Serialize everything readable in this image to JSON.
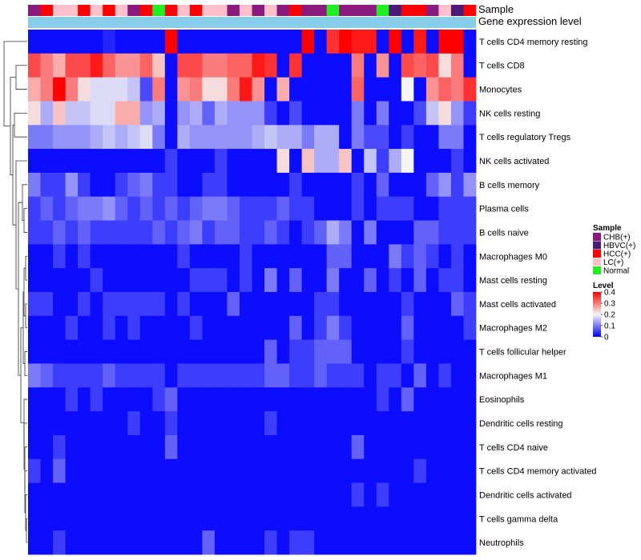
{
  "chart_data": {
    "type": "heatmap",
    "title": "",
    "track_labels": {
      "sample": "Sample",
      "gene_expression": "Gene expression level"
    },
    "sample_legend": {
      "title": "Sample",
      "entries": [
        {
          "key": "CHB",
          "label": "CHB(+)",
          "color": "#8B1A7E"
        },
        {
          "key": "HBVC",
          "label": "HBVC(+)",
          "color": "#4B1A78"
        },
        {
          "key": "HCC",
          "label": "HCC(+)",
          "color": "#FF0000"
        },
        {
          "key": "LC",
          "label": "LC(+)",
          "color": "#FFC0CB"
        },
        {
          "key": "Normal",
          "label": "Normal",
          "color": "#22EE22"
        }
      ]
    },
    "level_legend": {
      "title": "Level",
      "ticks": [
        "0",
        "0.1",
        "0.2",
        "0.3",
        "0.4"
      ],
      "tick_values": [
        0,
        0.1,
        0.2,
        0.3,
        0.4
      ],
      "range": [
        0,
        0.4
      ]
    },
    "color_scale": {
      "low": "#0000FF",
      "mid": "#F5F5F5",
      "high": "#FF0000",
      "domain": [
        0,
        0.2,
        0.4
      ]
    },
    "gene_expression_color": "#87CEEB",
    "sample_groups": [
      "CHB",
      "HCC",
      "LC",
      "LC",
      "HCC",
      "LC",
      "HCC",
      "LC",
      "CHB",
      "HCC",
      "Normal",
      "HCC",
      "LC",
      "HCC",
      "LC",
      "LC",
      "CHB",
      "LC",
      "CHB",
      "LC",
      "CHB",
      "HCC",
      "CHB",
      "CHB",
      "Normal",
      "CHB",
      "CHB",
      "CHB",
      "Normal",
      "HBVC",
      "HCC",
      "HCC",
      "CHB",
      "LC",
      "HBVC",
      "HCC"
    ],
    "rows": [
      "T cells CD4 memory resting",
      "T cells CD8",
      "Monocytes",
      "NK cells resting",
      "T cells regulatory  Tregs",
      "NK cells activated",
      "B cells memory",
      "Plasma cells",
      "B cells naive",
      "Macrophages M0",
      "Mast cells resting",
      "Mast cells activated",
      "Macrophages M2",
      "T cells follicular helper",
      "Macrophages M1",
      "Eosinophils",
      "Dendritic cells resting",
      "T cells CD4 naive",
      "T cells CD4 memory activated",
      "Dendritic cells activated",
      "T cells gamma delta",
      "Neutrophils"
    ],
    "values": [
      [
        0.01,
        0.01,
        0.01,
        0.01,
        0.01,
        0.01,
        0.03,
        0.01,
        0.01,
        0.01,
        0.01,
        0.4,
        0.01,
        0.01,
        0.01,
        0.01,
        0.01,
        0.01,
        0.01,
        0.01,
        0.01,
        0.01,
        0.4,
        0.01,
        0.36,
        0.4,
        0.38,
        0.38,
        0.01,
        0.4,
        0.01,
        0.38,
        0.01,
        0.4,
        0.4,
        0.01
      ],
      [
        0.34,
        0.3,
        0.26,
        0.34,
        0.34,
        0.38,
        0.32,
        0.28,
        0.28,
        0.32,
        0.24,
        0.01,
        0.34,
        0.34,
        0.3,
        0.3,
        0.32,
        0.32,
        0.38,
        0.36,
        0.01,
        0.36,
        0.01,
        0.01,
        0.01,
        0.01,
        0.3,
        0.01,
        0.28,
        0.01,
        0.34,
        0.32,
        0.34,
        0.22,
        0.3,
        0.01
      ],
      [
        0.26,
        0.3,
        0.4,
        0.3,
        0.22,
        0.18,
        0.18,
        0.18,
        0.16,
        0.06,
        0.3,
        0.01,
        0.28,
        0.3,
        0.22,
        0.22,
        0.3,
        0.38,
        0.28,
        0.01,
        0.26,
        0.01,
        0.01,
        0.01,
        0.01,
        0.01,
        0.32,
        0.01,
        0.01,
        0.01,
        0.2,
        0.01,
        0.28,
        0.32,
        0.3,
        0.36
      ],
      [
        0.22,
        0.14,
        0.24,
        0.16,
        0.16,
        0.18,
        0.18,
        0.26,
        0.26,
        0.12,
        0.14,
        0.01,
        0.12,
        0.14,
        0.08,
        0.14,
        0.12,
        0.12,
        0.12,
        0.05,
        0.01,
        0.06,
        0.01,
        0.01,
        0.01,
        0.01,
        0.1,
        0.01,
        0.1,
        0.01,
        0.01,
        0.06,
        0.16,
        0.22,
        0.12,
        0.05
      ],
      [
        0.1,
        0.1,
        0.12,
        0.12,
        0.12,
        0.14,
        0.16,
        0.14,
        0.16,
        0.18,
        0.1,
        0.01,
        0.14,
        0.12,
        0.12,
        0.12,
        0.12,
        0.12,
        0.14,
        0.16,
        0.14,
        0.14,
        0.1,
        0.14,
        0.14,
        0.01,
        0.1,
        0.06,
        0.06,
        0.01,
        0.05,
        0.01,
        0.01,
        0.1,
        0.1,
        0.01
      ],
      [
        0.01,
        0.01,
        0.01,
        0.01,
        0.01,
        0.01,
        0.01,
        0.01,
        0.01,
        0.01,
        0.01,
        0.05,
        0.01,
        0.01,
        0.01,
        0.05,
        0.01,
        0.01,
        0.01,
        0.01,
        0.22,
        0.01,
        0.24,
        0.14,
        0.14,
        0.24,
        0.01,
        0.16,
        0.05,
        0.14,
        0.2,
        0.01,
        0.01,
        0.01,
        0.05,
        0.01
      ],
      [
        0.1,
        0.05,
        0.05,
        0.12,
        0.05,
        0.01,
        0.01,
        0.05,
        0.08,
        0.1,
        0.05,
        0.05,
        0.01,
        0.01,
        0.05,
        0.05,
        0.01,
        0.01,
        0.01,
        0.01,
        0.01,
        0.05,
        0.01,
        0.01,
        0.01,
        0.01,
        0.05,
        0.01,
        0.08,
        0.01,
        0.01,
        0.01,
        0.08,
        0.12,
        0.05,
        0.12
      ],
      [
        0.05,
        0.08,
        0.05,
        0.08,
        0.1,
        0.1,
        0.12,
        0.08,
        0.05,
        0.08,
        0.05,
        0.08,
        0.05,
        0.08,
        0.1,
        0.1,
        0.08,
        0.05,
        0.05,
        0.05,
        0.08,
        0.05,
        0.05,
        0.01,
        0.01,
        0.01,
        0.05,
        0.01,
        0.05,
        0.05,
        0.05,
        0.01,
        0.01,
        0.05,
        0.05,
        0.05
      ],
      [
        0.05,
        0.05,
        0.08,
        0.05,
        0.08,
        0.05,
        0.05,
        0.05,
        0.05,
        0.05,
        0.08,
        0.05,
        0.08,
        0.1,
        0.05,
        0.08,
        0.08,
        0.05,
        0.05,
        0.08,
        0.05,
        0.01,
        0.05,
        0.08,
        0.14,
        0.1,
        0.01,
        0.1,
        0.01,
        0.01,
        0.01,
        0.08,
        0.08,
        0.05,
        0.05,
        0.05
      ],
      [
        0.01,
        0.01,
        0.05,
        0.01,
        0.05,
        0.01,
        0.01,
        0.01,
        0.01,
        0.01,
        0.01,
        0.01,
        0.05,
        0.01,
        0.01,
        0.01,
        0.01,
        0.05,
        0.01,
        0.01,
        0.01,
        0.01,
        0.01,
        0.01,
        0.08,
        0.08,
        0.01,
        0.01,
        0.01,
        0.1,
        0.05,
        0.08,
        0.05,
        0.01,
        0.05,
        0.01
      ],
      [
        0.01,
        0.01,
        0.01,
        0.01,
        0.01,
        0.05,
        0.01,
        0.01,
        0.01,
        0.01,
        0.01,
        0.01,
        0.01,
        0.05,
        0.05,
        0.05,
        0.01,
        0.05,
        0.01,
        0.1,
        0.01,
        0.08,
        0.01,
        0.01,
        0.1,
        0.01,
        0.01,
        0.08,
        0.01,
        0.05,
        0.01,
        0.08,
        0.01,
        0.05,
        0.05,
        0.01
      ],
      [
        0.05,
        0.05,
        0.01,
        0.01,
        0.05,
        0.01,
        0.05,
        0.05,
        0.05,
        0.05,
        0.05,
        0.01,
        0.05,
        0.01,
        0.01,
        0.01,
        0.08,
        0.01,
        0.01,
        0.01,
        0.01,
        0.01,
        0.01,
        0.05,
        0.05,
        0.01,
        0.01,
        0.01,
        0.01,
        0.01,
        0.05,
        0.01,
        0.01,
        0.01,
        0.08,
        0.05
      ],
      [
        0.01,
        0.01,
        0.01,
        0.05,
        0.01,
        0.01,
        0.05,
        0.01,
        0.05,
        0.01,
        0.01,
        0.01,
        0.01,
        0.05,
        0.01,
        0.01,
        0.01,
        0.01,
        0.01,
        0.01,
        0.01,
        0.08,
        0.01,
        0.05,
        0.1,
        0.05,
        0.01,
        0.01,
        0.01,
        0.01,
        0.08,
        0.01,
        0.01,
        0.01,
        0.01,
        0.05
      ],
      [
        0.01,
        0.01,
        0.01,
        0.01,
        0.01,
        0.01,
        0.01,
        0.01,
        0.01,
        0.01,
        0.01,
        0.01,
        0.01,
        0.01,
        0.01,
        0.01,
        0.01,
        0.01,
        0.01,
        0.08,
        0.01,
        0.05,
        0.05,
        0.08,
        0.08,
        0.08,
        0.01,
        0.01,
        0.01,
        0.01,
        0.05,
        0.01,
        0.01,
        0.01,
        0.01,
        0.01
      ],
      [
        0.1,
        0.08,
        0.05,
        0.05,
        0.05,
        0.05,
        0.08,
        0.05,
        0.05,
        0.05,
        0.05,
        0.01,
        0.05,
        0.05,
        0.05,
        0.05,
        0.05,
        0.05,
        0.05,
        0.08,
        0.08,
        0.05,
        0.05,
        0.08,
        0.05,
        0.05,
        0.05,
        0.01,
        0.05,
        0.05,
        0.01,
        0.08,
        0.01,
        0.05,
        0.01,
        0.01
      ],
      [
        0.01,
        0.01,
        0.01,
        0.05,
        0.01,
        0.05,
        0.01,
        0.01,
        0.01,
        0.01,
        0.05,
        0.08,
        0.01,
        0.01,
        0.01,
        0.01,
        0.01,
        0.01,
        0.01,
        0.01,
        0.01,
        0.01,
        0.01,
        0.01,
        0.01,
        0.01,
        0.01,
        0.01,
        0.05,
        0.01,
        0.08,
        0.01,
        0.01,
        0.01,
        0.01,
        0.01
      ],
      [
        0.01,
        0.01,
        0.01,
        0.01,
        0.01,
        0.01,
        0.01,
        0.01,
        0.05,
        0.01,
        0.01,
        0.05,
        0.01,
        0.01,
        0.01,
        0.01,
        0.01,
        0.01,
        0.01,
        0.05,
        0.01,
        0.01,
        0.01,
        0.01,
        0.01,
        0.01,
        0.01,
        0.01,
        0.01,
        0.01,
        0.01,
        0.01,
        0.01,
        0.01,
        0.01,
        0.01
      ],
      [
        0.01,
        0.01,
        0.05,
        0.01,
        0.01,
        0.01,
        0.01,
        0.01,
        0.01,
        0.01,
        0.01,
        0.08,
        0.01,
        0.01,
        0.01,
        0.01,
        0.01,
        0.01,
        0.01,
        0.01,
        0.01,
        0.01,
        0.01,
        0.01,
        0.01,
        0.01,
        0.08,
        0.01,
        0.01,
        0.01,
        0.01,
        0.01,
        0.01,
        0.01,
        0.01,
        0.01
      ],
      [
        0.05,
        0.01,
        0.08,
        0.01,
        0.01,
        0.01,
        0.01,
        0.01,
        0.01,
        0.01,
        0.01,
        0.01,
        0.01,
        0.01,
        0.01,
        0.01,
        0.01,
        0.01,
        0.01,
        0.01,
        0.01,
        0.01,
        0.01,
        0.01,
        0.01,
        0.01,
        0.01,
        0.01,
        0.01,
        0.01,
        0.01,
        0.05,
        0.01,
        0.01,
        0.01,
        0.01
      ],
      [
        0.01,
        0.01,
        0.01,
        0.01,
        0.01,
        0.01,
        0.01,
        0.01,
        0.01,
        0.01,
        0.01,
        0.01,
        0.01,
        0.01,
        0.01,
        0.01,
        0.01,
        0.01,
        0.01,
        0.01,
        0.01,
        0.01,
        0.01,
        0.01,
        0.01,
        0.01,
        0.05,
        0.01,
        0.05,
        0.01,
        0.01,
        0.01,
        0.01,
        0.01,
        0.01,
        0.01
      ],
      [
        0.01,
        0.01,
        0.01,
        0.01,
        0.01,
        0.01,
        0.01,
        0.01,
        0.01,
        0.01,
        0.01,
        0.01,
        0.01,
        0.01,
        0.01,
        0.01,
        0.01,
        0.01,
        0.01,
        0.01,
        0.01,
        0.01,
        0.01,
        0.01,
        0.01,
        0.01,
        0.01,
        0.01,
        0.01,
        0.01,
        0.01,
        0.01,
        0.01,
        0.01,
        0.01,
        0.01
      ],
      [
        0.01,
        0.01,
        0.05,
        0.01,
        0.01,
        0.01,
        0.01,
        0.01,
        0.01,
        0.01,
        0.01,
        0.01,
        0.01,
        0.01,
        0.08,
        0.01,
        0.01,
        0.01,
        0.01,
        0.05,
        0.01,
        0.05,
        0.05,
        0.01,
        0.01,
        0.01,
        0.01,
        0.01,
        0.01,
        0.01,
        0.01,
        0.01,
        0.01,
        0.01,
        0.01,
        0.01
      ]
    ]
  }
}
